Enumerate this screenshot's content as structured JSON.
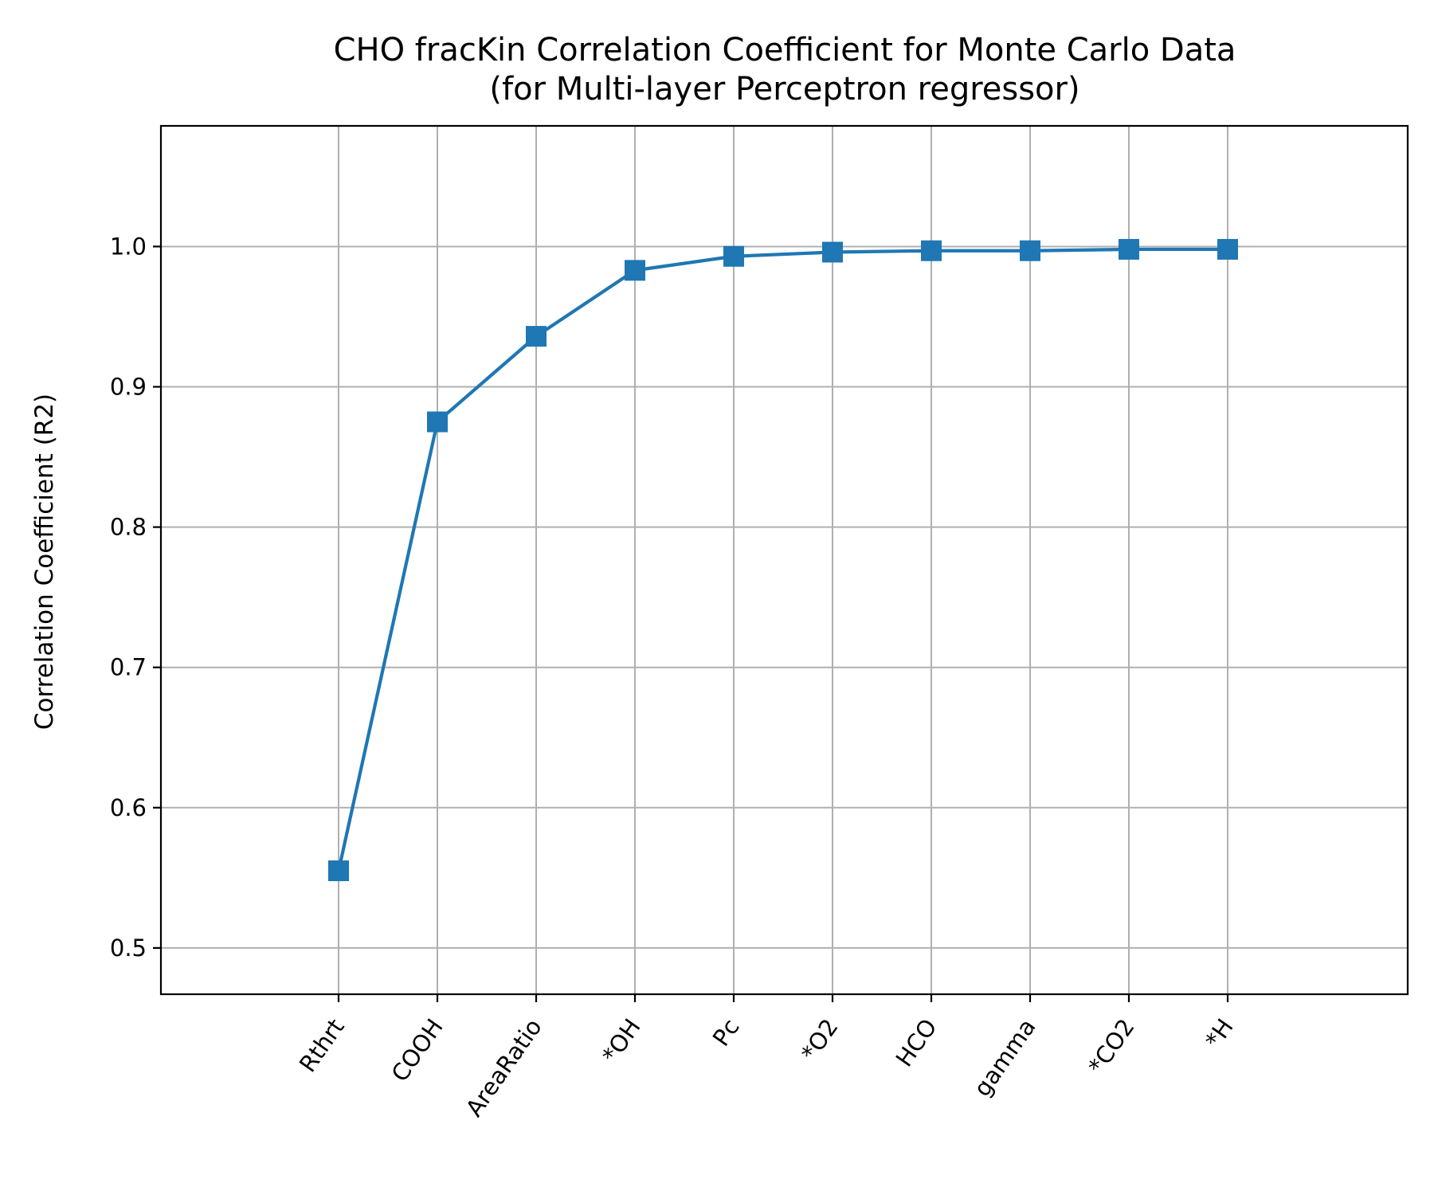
{
  "chart_data": {
    "type": "line",
    "title": "CHO fracKin Correlation Coefficient for Monte Carlo Data",
    "subtitle": "(for Multi-layer Perceptron regressor)",
    "xlabel": "",
    "ylabel": "Correlation Coefficient (R2)",
    "categories": [
      "Rthrt",
      "COOH",
      "AreaRatio",
      "*OH",
      "Pc",
      "*O2",
      "HCO",
      "gamma",
      "*CO2",
      "*H"
    ],
    "series": [
      {
        "values": [
          0.555,
          0.875,
          0.936,
          0.983,
          0.993,
          0.996,
          0.997,
          0.997,
          0.998,
          0.998
        ],
        "color": "#1f77b4",
        "marker": "square"
      }
    ],
    "ylim": [
      0.467,
      1.086
    ],
    "yticks": [
      0.5,
      0.6,
      0.7,
      0.8,
      0.9,
      1.0
    ],
    "ytick_labels": [
      "0.5",
      "0.6",
      "0.7",
      "0.8",
      "0.9",
      "1.0"
    ],
    "grid": true,
    "legend": "none"
  }
}
